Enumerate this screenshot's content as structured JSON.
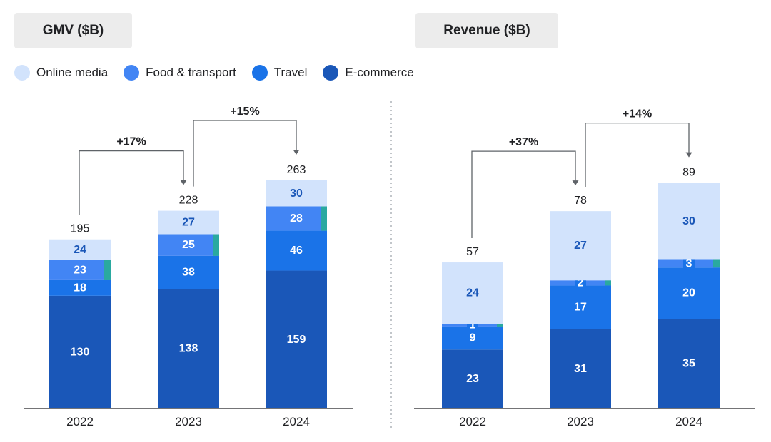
{
  "colors": {
    "online_media": "#d2e3fc",
    "food_transport": "#4285f4",
    "travel": "#1a73e8",
    "ecommerce": "#1a57b8",
    "teal_accent": "#2aa9a0",
    "label_dark": "#ffffff",
    "label_light": "#1a57b8"
  },
  "legend": [
    {
      "label": "Online media",
      "color": "#d2e3fc"
    },
    {
      "label": "Food & transport",
      "color": "#4285f4"
    },
    {
      "label": "Travel",
      "color": "#1a73e8"
    },
    {
      "label": "E-commerce",
      "color": "#1a57b8"
    }
  ],
  "chart_data": [
    {
      "type": "bar",
      "stacked": true,
      "title": "GMV ($B)",
      "categories": [
        "2022",
        "2023",
        "2024"
      ],
      "series": [
        {
          "name": "E-commerce",
          "values": [
            130,
            138,
            159
          ]
        },
        {
          "name": "Travel",
          "values": [
            18,
            38,
            46
          ]
        },
        {
          "name": "Food & transport",
          "values": [
            23,
            25,
            28
          ]
        },
        {
          "name": "Online media",
          "values": [
            24,
            27,
            30
          ]
        }
      ],
      "totals": [
        195,
        228,
        263
      ],
      "growth": [
        {
          "from": 0,
          "to": 1,
          "label": "+17%"
        },
        {
          "from": 1,
          "to": 2,
          "label": "+15%"
        }
      ],
      "ylim": [
        0,
        263
      ]
    },
    {
      "type": "bar",
      "stacked": true,
      "title": "Revenue ($B)",
      "categories": [
        "2022",
        "2023",
        "2024"
      ],
      "series": [
        {
          "name": "E-commerce",
          "values": [
            23,
            31,
            35
          ]
        },
        {
          "name": "Travel",
          "values": [
            9,
            17,
            20
          ]
        },
        {
          "name": "Food & transport",
          "values": [
            1,
            2,
            3
          ]
        },
        {
          "name": "Online media",
          "values": [
            24,
            27,
            30
          ]
        }
      ],
      "totals": [
        57,
        78,
        89
      ],
      "growth": [
        {
          "from": 0,
          "to": 1,
          "label": "+37%"
        },
        {
          "from": 1,
          "to": 2,
          "label": "+14%"
        }
      ],
      "ylim": [
        0,
        89
      ]
    }
  ]
}
